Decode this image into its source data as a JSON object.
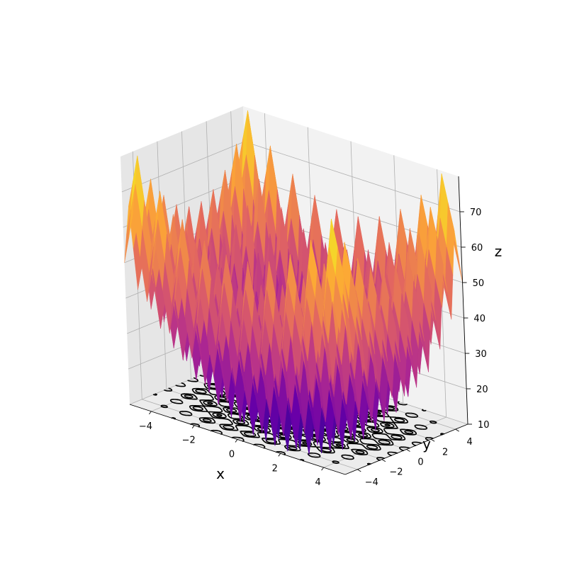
{
  "chart_data": {
    "type": "surface3d",
    "title": "",
    "surface_function": "Rastrigin: z = 20 + x^2 + y^2 - 10*(cos(2*pi*x) + cos(2*pi*y))",
    "surface_style": "sharp faceted peaks; contour lines projected onto the floor at z = 10",
    "colormap": "plasma",
    "colormap_stops": [
      "#0d0887",
      "#6a00a8",
      "#b12a90",
      "#e16462",
      "#fca636",
      "#f0f921"
    ],
    "contour_color": "#000000",
    "xlabel": "x",
    "ylabel": "y",
    "zlabel": "z",
    "xlim": [
      -5,
      5
    ],
    "ylim": [
      -5,
      5
    ],
    "zlim": [
      10,
      80
    ],
    "x_ticks": [
      "−4",
      "−2",
      "0",
      "2",
      "4"
    ],
    "y_ticks": [
      "−4",
      "−2",
      "0",
      "2",
      "4"
    ],
    "z_ticks": [
      "10",
      "20",
      "30",
      "40",
      "50",
      "60",
      "70"
    ],
    "grid": true,
    "pane_color": "#f2f2f2"
  }
}
